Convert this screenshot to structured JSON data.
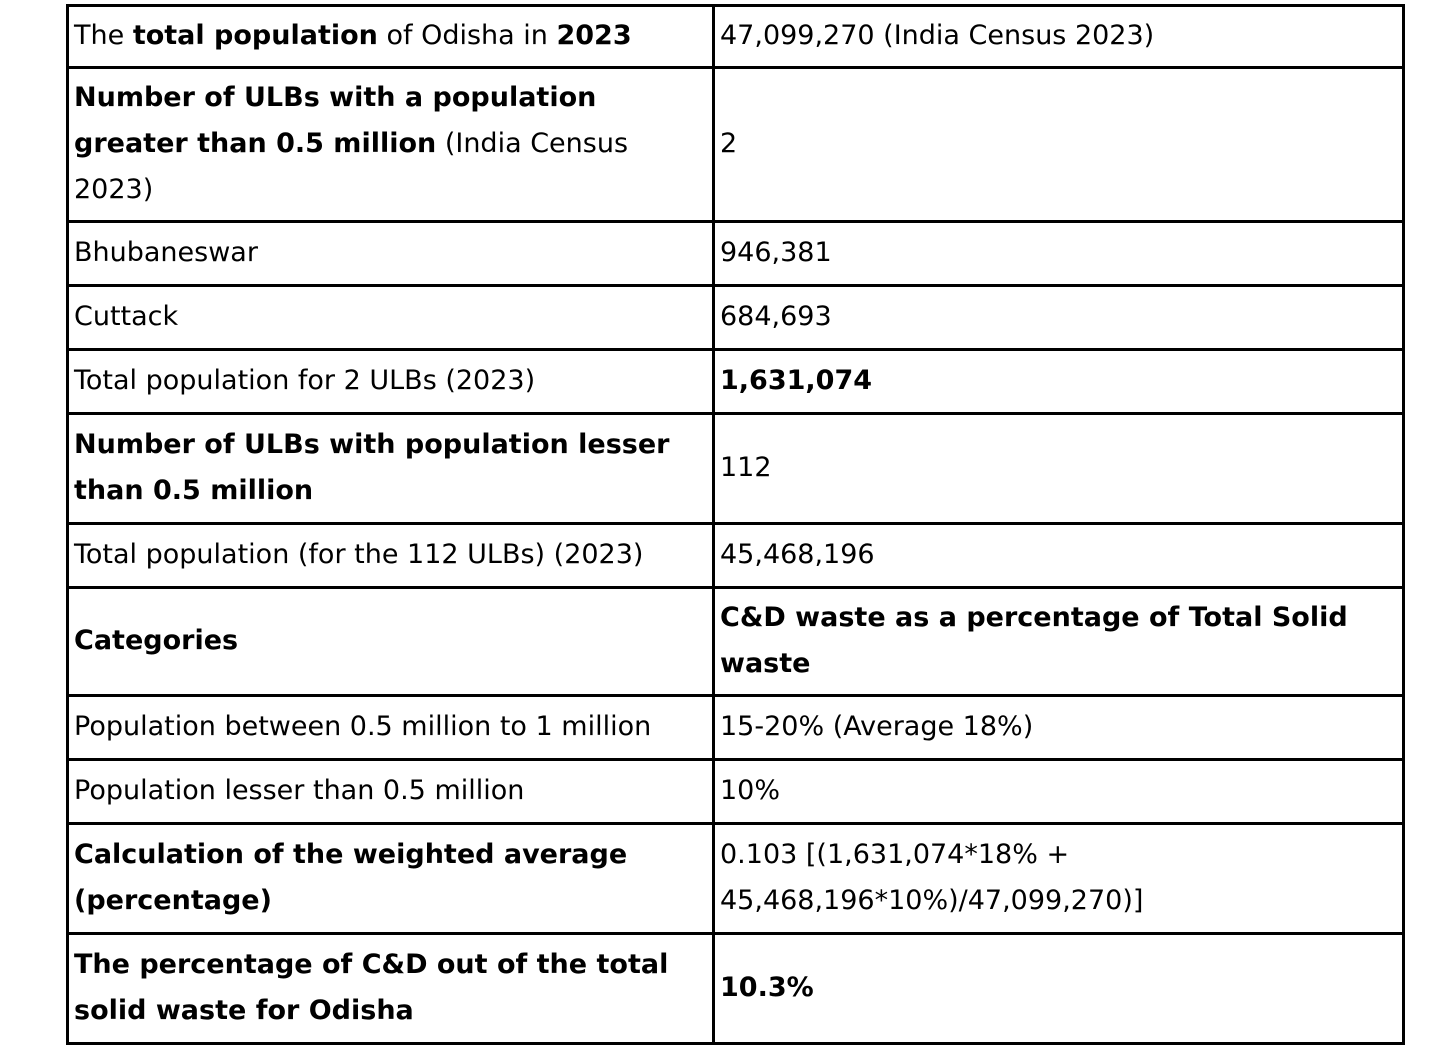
{
  "rows": [
    {
      "label_parts": [
        {
          "text": "The ",
          "bold": false
        },
        {
          "text": "total population",
          "bold": true
        },
        {
          "text": " of Odisha in ",
          "bold": false
        },
        {
          "text": "2023",
          "bold": true
        }
      ],
      "value_parts": [
        {
          "text": "47,099,270 (India Census 2023)",
          "bold": false
        }
      ]
    },
    {
      "label_parts": [
        {
          "text": "Number of ULBs with a population greater than 0.5 million",
          "bold": true
        },
        {
          "text": " (India Census 2023)",
          "bold": false
        }
      ],
      "value_parts": [
        {
          "text": "2",
          "bold": false
        }
      ]
    },
    {
      "label_parts": [
        {
          "text": "Bhubaneswar",
          "bold": false
        }
      ],
      "value_parts": [
        {
          "text": "946,381",
          "bold": false
        }
      ]
    },
    {
      "label_parts": [
        {
          "text": "Cuttack",
          "bold": false
        }
      ],
      "value_parts": [
        {
          "text": "684,693",
          "bold": false
        }
      ]
    },
    {
      "label_parts": [
        {
          "text": "Total population for 2 ULBs (2023)",
          "bold": false
        }
      ],
      "value_parts": [
        {
          "text": "1,631,074",
          "bold": true
        }
      ]
    },
    {
      "label_parts": [
        {
          "text": "Number of ULBs with population lesser than 0.5 million",
          "bold": true
        }
      ],
      "value_parts": [
        {
          "text": "112",
          "bold": false
        }
      ]
    },
    {
      "label_parts": [
        {
          "text": "Total population (for the 112 ULBs) (2023)",
          "bold": false
        }
      ],
      "value_parts": [
        {
          "text": "45,468,196",
          "bold": false
        }
      ]
    },
    {
      "label_parts": [
        {
          "text": "Categories",
          "bold": true
        }
      ],
      "value_parts": [
        {
          "text": "C&D waste as a percentage of Total Solid waste",
          "bold": true
        }
      ]
    },
    {
      "label_parts": [
        {
          "text": "Population between 0.5 million to 1 million",
          "bold": false
        }
      ],
      "value_parts": [
        {
          "text": "15-20% (Average 18%)",
          "bold": false
        }
      ]
    },
    {
      "label_parts": [
        {
          "text": "Population lesser than 0.5 million",
          "bold": false
        }
      ],
      "value_parts": [
        {
          "text": "10%",
          "bold": false
        }
      ]
    },
    {
      "label_parts": [
        {
          "text": "Calculation of the weighted average (percentage)",
          "bold": true
        }
      ],
      "value_parts": [
        {
          "text": "0.103 [(1,631,074*18% + 45,468,196*10%)/47,099,270)]",
          "bold": false
        }
      ]
    },
    {
      "label_parts": [
        {
          "text": "The percentage of C&D out of the total solid waste for Odisha",
          "bold": true
        }
      ],
      "value_parts": [
        {
          "text": "10.3%",
          "bold": true
        }
      ]
    }
  ]
}
